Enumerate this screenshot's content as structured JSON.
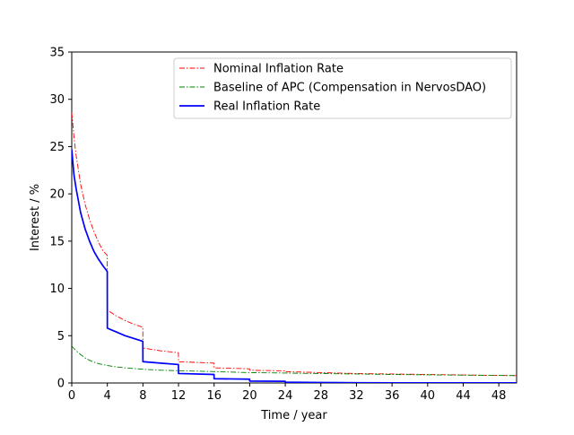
{
  "chart_data": {
    "type": "line",
    "title": "",
    "xlabel": "Time / year",
    "ylabel": "Interest / %",
    "xlim": [
      0,
      50
    ],
    "ylim": [
      0,
      35
    ],
    "xticks": [
      0,
      4,
      8,
      12,
      16,
      20,
      24,
      28,
      32,
      36,
      40,
      44,
      48
    ],
    "yticks": [
      0,
      5,
      10,
      15,
      20,
      25,
      30,
      35
    ],
    "grid": false,
    "legend_position": "top-right",
    "series": [
      {
        "name": "Nominal Inflation Rate",
        "color": "#ff0000",
        "style": "dashdot",
        "x": [
          0,
          0.25,
          0.5,
          1,
          1.5,
          2,
          2.5,
          3,
          3.5,
          3.99,
          4,
          5,
          6,
          7,
          7.99,
          8,
          10,
          11.99,
          12,
          15.99,
          16,
          19.99,
          20,
          23.99,
          24,
          28,
          32,
          36,
          40,
          44,
          48,
          50
        ],
        "values": [
          28.6,
          26.0,
          24.0,
          21.0,
          18.9,
          17.3,
          16.0,
          14.9,
          14.0,
          13.5,
          7.7,
          7.1,
          6.6,
          6.2,
          5.9,
          3.7,
          3.4,
          3.2,
          2.25,
          2.1,
          1.6,
          1.5,
          1.35,
          1.28,
          1.2,
          1.1,
          1.0,
          0.95,
          0.9,
          0.85,
          0.8,
          0.78
        ]
      },
      {
        "name": "Baseline of APC (Compensation in NervosDAO)",
        "color": "#008000",
        "style": "dashdot",
        "x": [
          0,
          0.5,
          1,
          1.5,
          2,
          2.5,
          3,
          3.5,
          4,
          5,
          6,
          8,
          10,
          12,
          16,
          20,
          24,
          28,
          32,
          36,
          40,
          44,
          48,
          50
        ],
        "values": [
          3.9,
          3.4,
          3.0,
          2.65,
          2.4,
          2.2,
          2.05,
          1.95,
          1.85,
          1.7,
          1.6,
          1.45,
          1.35,
          1.3,
          1.2,
          1.1,
          1.05,
          1.0,
          0.95,
          0.9,
          0.86,
          0.83,
          0.8,
          0.78
        ]
      },
      {
        "name": "Real Inflation Rate",
        "color": "#0000ff",
        "style": "solid",
        "x": [
          0,
          0.25,
          0.5,
          1,
          1.5,
          2,
          2.5,
          3,
          3.5,
          3.99,
          4,
          5,
          6,
          7,
          7.99,
          8,
          10,
          11.99,
          12,
          15.99,
          16,
          19.99,
          20,
          23.99,
          24,
          28,
          32,
          36,
          40,
          44,
          48,
          50
        ],
        "values": [
          24.7,
          22.0,
          20.5,
          18.0,
          16.3,
          15.0,
          13.9,
          13.1,
          12.4,
          11.8,
          5.8,
          5.4,
          5.0,
          4.7,
          4.4,
          2.25,
          2.1,
          1.95,
          1.0,
          0.9,
          0.45,
          0.4,
          0.2,
          0.18,
          0.08,
          0.05,
          0.03,
          0.02,
          0.02,
          0.01,
          0.01,
          0.01
        ]
      }
    ]
  }
}
